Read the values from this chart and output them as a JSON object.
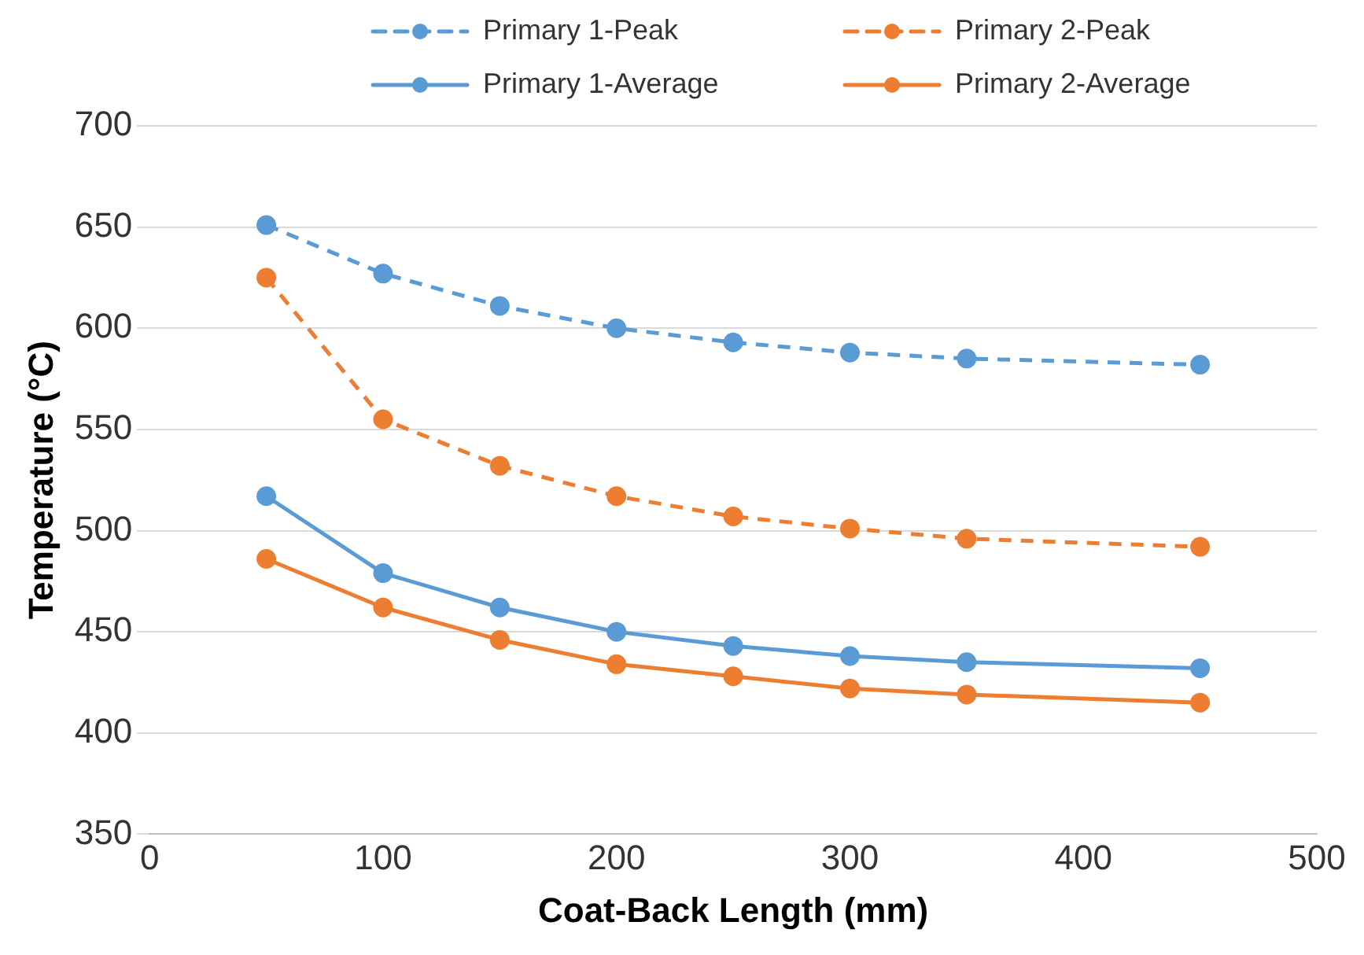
{
  "chart_data": {
    "type": "line",
    "xlabel": "Coat-Back Length (mm)",
    "ylabel": "Temperature (°C)",
    "xlim": [
      0,
      500
    ],
    "xticks": [
      0,
      100,
      200,
      300,
      400,
      500
    ],
    "ylim": [
      350,
      700
    ],
    "yticks": [
      350,
      400,
      450,
      500,
      550,
      600,
      650,
      700
    ],
    "grid": "y",
    "legend": "top right",
    "marker": "circle",
    "x": [
      50,
      100,
      150,
      200,
      250,
      300,
      350,
      450
    ],
    "series": [
      {
        "name": "Primary 1-Peak",
        "color": "#5b9bd5",
        "line_style": "dashed",
        "values": [
          651,
          627,
          611,
          600,
          593,
          588,
          585,
          582
        ]
      },
      {
        "name": "Primary 2-Peak",
        "color": "#ed7d31",
        "line_style": "dashed",
        "values": [
          625,
          555,
          532,
          517,
          507,
          501,
          496,
          492
        ]
      },
      {
        "name": "Primary 1-Average",
        "color": "#5b9bd5",
        "line_style": "solid",
        "values": [
          517,
          479,
          462,
          450,
          443,
          438,
          435,
          432
        ]
      },
      {
        "name": "Primary 2-Average",
        "color": "#ed7d31",
        "line_style": "solid",
        "values": [
          486,
          462,
          446,
          434,
          428,
          422,
          419,
          415
        ]
      }
    ]
  }
}
